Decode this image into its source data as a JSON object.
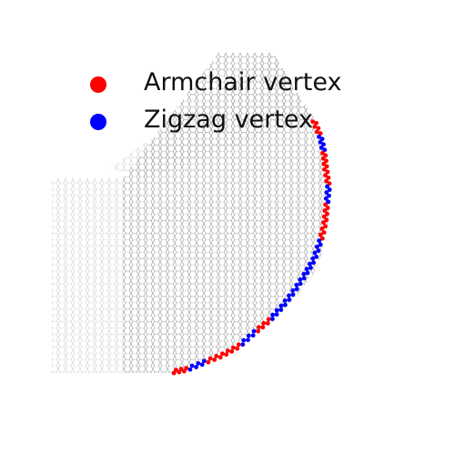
{
  "legend": {
    "items": [
      {
        "label": "Armchair vertex",
        "color": "#ff0000"
      },
      {
        "label": "Zigzag vertex",
        "color": "#0000ff"
      }
    ]
  },
  "colors": {
    "lattice_light": "#d0d0d0",
    "lattice_dark": "#9a9a9a",
    "armchair": "#ff0000",
    "zigzag": "#0000ff"
  }
}
